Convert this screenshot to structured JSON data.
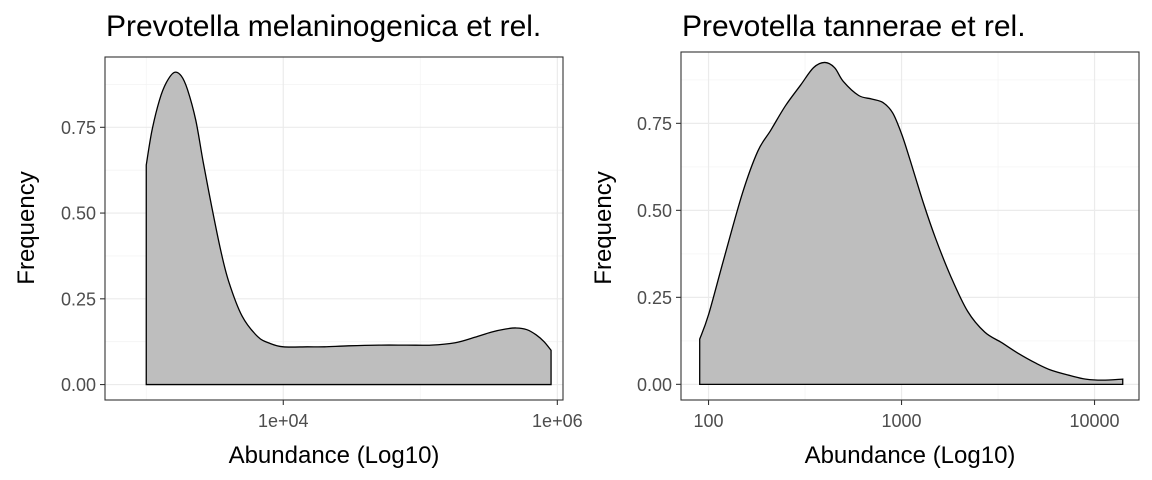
{
  "chart_data": [
    {
      "type": "area",
      "title": "Prevotella melaninogenica et rel.",
      "xlabel": "Abundance (Log10)",
      "ylabel": "Frequency",
      "x_scale": "log10",
      "xlim": [
        500,
        1100000
      ],
      "ylim": [
        -0.045,
        0.955
      ],
      "x_ticks": [
        10000,
        1000000
      ],
      "x_tick_labels": [
        "1e+04",
        "1e+06"
      ],
      "y_ticks": [
        0,
        0.25,
        0.5,
        0.75
      ],
      "y_tick_labels": [
        "0.00",
        "0.25",
        "0.50",
        "0.75"
      ],
      "fill_color": "#bebebe",
      "line_color": "#000000",
      "grid": true,
      "series": [
        {
          "x": [
            1000,
            1100,
            1250,
            1400,
            1600,
            1800,
            2000,
            2300,
            2600,
            3000,
            3500,
            4000,
            5000,
            6500,
            8000,
            10000,
            15000,
            20000,
            30000,
            50000,
            80000,
            120000,
            180000,
            250000,
            330000,
            420000,
            500000,
            600000,
            700000,
            800000,
            900000
          ],
          "y": [
            0.64,
            0.74,
            0.83,
            0.88,
            0.91,
            0.9,
            0.86,
            0.77,
            0.65,
            0.52,
            0.39,
            0.3,
            0.2,
            0.14,
            0.12,
            0.11,
            0.11,
            0.11,
            0.113,
            0.115,
            0.115,
            0.115,
            0.122,
            0.138,
            0.153,
            0.162,
            0.165,
            0.16,
            0.145,
            0.125,
            0.1
          ]
        }
      ]
    },
    {
      "type": "area",
      "title": "Prevotella tannerae et rel.",
      "xlabel": "Abundance (Log10)",
      "ylabel": "Frequency",
      "x_scale": "log10",
      "xlim": [
        72,
        17000
      ],
      "ylim": [
        -0.045,
        0.955
      ],
      "x_ticks": [
        100,
        1000,
        10000
      ],
      "x_tick_labels": [
        "100",
        "1000",
        "10000"
      ],
      "y_ticks": [
        0,
        0.25,
        0.5,
        0.75
      ],
      "y_tick_labels": [
        "0.00",
        "0.25",
        "0.50",
        "0.75"
      ],
      "fill_color": "#bebebe",
      "line_color": "#000000",
      "grid": true,
      "series": [
        {
          "x": [
            90,
            100,
            120,
            150,
            180,
            210,
            250,
            300,
            350,
            400,
            450,
            500,
            600,
            700,
            800,
            900,
            1000,
            1100,
            1300,
            1500,
            1800,
            2200,
            2700,
            3300,
            4000,
            5000,
            6000,
            7500,
            9000,
            11000,
            14000
          ],
          "y": [
            0.13,
            0.2,
            0.36,
            0.55,
            0.67,
            0.73,
            0.8,
            0.86,
            0.91,
            0.925,
            0.91,
            0.87,
            0.83,
            0.82,
            0.81,
            0.78,
            0.72,
            0.65,
            0.52,
            0.42,
            0.31,
            0.21,
            0.15,
            0.12,
            0.09,
            0.06,
            0.04,
            0.025,
            0.015,
            0.012,
            0.015
          ]
        }
      ]
    }
  ]
}
